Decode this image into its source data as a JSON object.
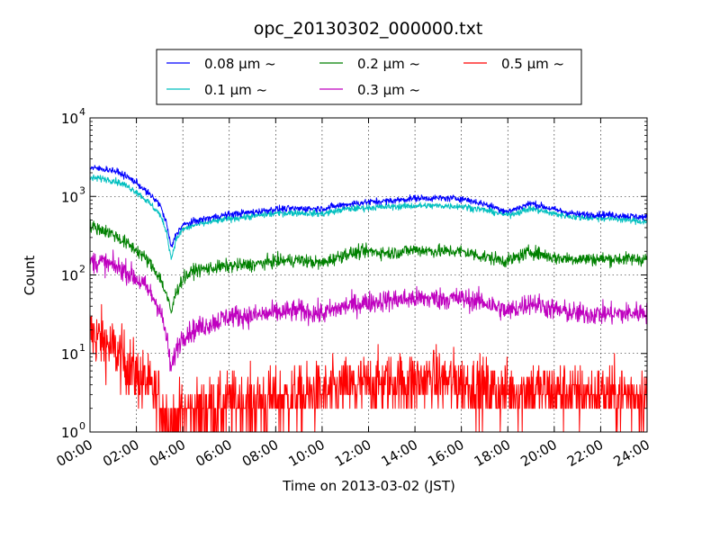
{
  "chart_data": {
    "type": "line",
    "title": "opc_20130302_000000.txt",
    "xlabel": "Time on 2013-03-02 (JST)",
    "ylabel": "Count",
    "y_scale": "log",
    "ylim": [
      1,
      10000
    ],
    "y_tick_labels": [
      {
        "value": 1,
        "base": "10",
        "exp": "0"
      },
      {
        "value": 10,
        "base": "10",
        "exp": "1"
      },
      {
        "value": 100,
        "base": "10",
        "exp": "2"
      },
      {
        "value": 1000,
        "base": "10",
        "exp": "3"
      },
      {
        "value": 10000,
        "base": "10",
        "exp": "4"
      }
    ],
    "xlim": [
      "00:00",
      "24:00"
    ],
    "x_tick_labels": [
      "00:00",
      "02:00",
      "04:00",
      "06:00",
      "08:00",
      "10:00",
      "12:00",
      "14:00",
      "16:00",
      "18:00",
      "20:00",
      "22:00",
      "24:00"
    ],
    "grid": true,
    "legend_placement": "above plot, centered",
    "x_hours": [
      0,
      0.5,
      1,
      1.5,
      2,
      2.5,
      3,
      3.3,
      3.5,
      3.7,
      4,
      4.5,
      5,
      5.5,
      6,
      7,
      8,
      9,
      10,
      11,
      12,
      13,
      14,
      15,
      16,
      17,
      18,
      19,
      20,
      21,
      22,
      23,
      24
    ],
    "series": [
      {
        "name": "0.08 μm ~",
        "color": "#0000ff",
        "noise": 0.03,
        "values": [
          2300,
          2250,
          2150,
          1850,
          1500,
          1100,
          800,
          450,
          220,
          330,
          430,
          480,
          520,
          560,
          590,
          630,
          690,
          700,
          700,
          790,
          850,
          880,
          950,
          950,
          940,
          800,
          640,
          820,
          680,
          590,
          590,
          570,
          540
        ]
      },
      {
        "name": "0.1 μm ~",
        "color": "#00bfbf",
        "noise": 0.03,
        "values": [
          1700,
          1700,
          1600,
          1400,
          1150,
          850,
          600,
          350,
          160,
          280,
          380,
          430,
          460,
          490,
          520,
          560,
          610,
          620,
          600,
          690,
          720,
          740,
          760,
          760,
          750,
          670,
          580,
          700,
          600,
          540,
          530,
          510,
          470
        ]
      },
      {
        "name": "0.2 μm ~",
        "color": "#008000",
        "noise": 0.06,
        "values": [
          420,
          380,
          330,
          260,
          210,
          150,
          95,
          55,
          33,
          60,
          90,
          115,
          120,
          125,
          130,
          135,
          150,
          155,
          140,
          185,
          200,
          190,
          210,
          200,
          200,
          170,
          150,
          200,
          165,
          160,
          160,
          160,
          160
        ]
      },
      {
        "name": "0.3 μm ~",
        "color": "#bf00bf",
        "noise": 0.1,
        "values": [
          150,
          145,
          130,
          115,
          90,
          65,
          38,
          16,
          6,
          11,
          17,
          20,
          23,
          26,
          30,
          30,
          33,
          35,
          32,
          40,
          45,
          48,
          50,
          50,
          50,
          45,
          34,
          45,
          36,
          32,
          32,
          32,
          34
        ]
      },
      {
        "name": "0.5 μm ~",
        "color": "#ff0000",
        "noise": 0.28,
        "values": [
          18,
          15,
          11,
          8,
          5.5,
          3.8,
          2.6,
          1.6,
          1.2,
          1.4,
          1.7,
          1.9,
          2,
          2.1,
          2.3,
          2.4,
          2.6,
          2.8,
          3,
          3.5,
          4,
          4.2,
          4.5,
          4.5,
          4.2,
          3.6,
          3.2,
          3.5,
          3.2,
          3,
          3,
          3,
          3
        ]
      }
    ]
  }
}
